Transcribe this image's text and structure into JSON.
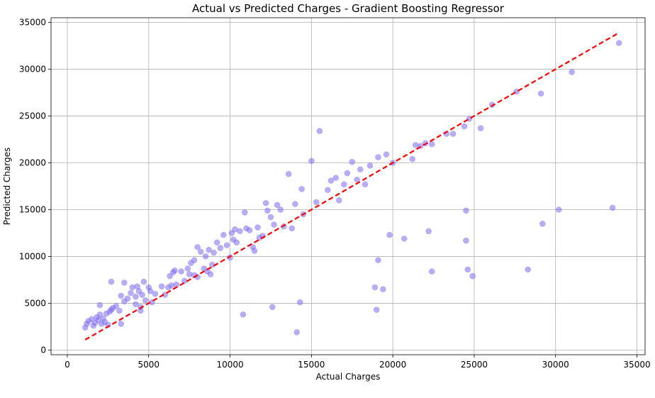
{
  "chart_data": {
    "type": "scatter",
    "title": "Actual vs Predicted Charges - Gradient Boosting Regressor",
    "xlabel": "Actual Charges",
    "ylabel": "Predicted Charges",
    "xlim": [
      -1000,
      35500
    ],
    "ylim": [
      -500,
      35500
    ],
    "xticks": [
      0,
      5000,
      10000,
      15000,
      20000,
      25000,
      30000,
      35000
    ],
    "yticks": [
      0,
      5000,
      10000,
      15000,
      20000,
      25000,
      30000,
      35000
    ],
    "grid": true,
    "colors": {
      "points": "#7b68ee",
      "reference_line": "#ff0000"
    },
    "reference_line": {
      "style": "dashed",
      "x": [
        1100,
        33900
      ],
      "y": [
        1100,
        33900
      ]
    },
    "points": [
      [
        1100,
        2400
      ],
      [
        1200,
        2800
      ],
      [
        1300,
        3100
      ],
      [
        1500,
        3300
      ],
      [
        1600,
        2600
      ],
      [
        1700,
        2900
      ],
      [
        1800,
        3500
      ],
      [
        1900,
        3200
      ],
      [
        2000,
        3800
      ],
      [
        2000,
        4800
      ],
      [
        2100,
        2800
      ],
      [
        2200,
        3400
      ],
      [
        2300,
        3000
      ],
      [
        2400,
        3900
      ],
      [
        2500,
        2700
      ],
      [
        2600,
        4100
      ],
      [
        2700,
        4300
      ],
      [
        2800,
        4500
      ],
      [
        2700,
        7300
      ],
      [
        3000,
        4700
      ],
      [
        3300,
        2800
      ],
      [
        3200,
        4200
      ],
      [
        3300,
        5800
      ],
      [
        3500,
        5200
      ],
      [
        3500,
        7200
      ],
      [
        3700,
        5500
      ],
      [
        3900,
        6100
      ],
      [
        4000,
        6700
      ],
      [
        4200,
        4900
      ],
      [
        4200,
        5700
      ],
      [
        4300,
        6800
      ],
      [
        4400,
        6300
      ],
      [
        4500,
        4600
      ],
      [
        4500,
        4200
      ],
      [
        4600,
        5900
      ],
      [
        4700,
        7300
      ],
      [
        4800,
        5300
      ],
      [
        5000,
        6700
      ],
      [
        5100,
        6300
      ],
      [
        5200,
        5100
      ],
      [
        5400,
        6000
      ],
      [
        5800,
        6800
      ],
      [
        6000,
        5900
      ],
      [
        6200,
        6700
      ],
      [
        6300,
        7900
      ],
      [
        6400,
        6900
      ],
      [
        6500,
        8300
      ],
      [
        6600,
        8500
      ],
      [
        6700,
        7000
      ],
      [
        7000,
        8400
      ],
      [
        7200,
        7400
      ],
      [
        7400,
        8700
      ],
      [
        7500,
        8100
      ],
      [
        7600,
        9300
      ],
      [
        7800,
        8000
      ],
      [
        7800,
        9600
      ],
      [
        8000,
        7800
      ],
      [
        8000,
        11000
      ],
      [
        8200,
        10500
      ],
      [
        8400,
        8700
      ],
      [
        8500,
        10000
      ],
      [
        8600,
        8400
      ],
      [
        8700,
        10700
      ],
      [
        8800,
        8100
      ],
      [
        8900,
        9100
      ],
      [
        9000,
        10400
      ],
      [
        9200,
        11500
      ],
      [
        9400,
        10900
      ],
      [
        9600,
        12300
      ],
      [
        9800,
        11200
      ],
      [
        10000,
        9900
      ],
      [
        10100,
        12500
      ],
      [
        10200,
        11800
      ],
      [
        10300,
        12900
      ],
      [
        10400,
        11500
      ],
      [
        10600,
        12700
      ],
      [
        10800,
        3800
      ],
      [
        10900,
        14700
      ],
      [
        11000,
        13000
      ],
      [
        11200,
        12800
      ],
      [
        11400,
        11000
      ],
      [
        11500,
        10600
      ],
      [
        11700,
        13100
      ],
      [
        11800,
        12000
      ],
      [
        12000,
        12200
      ],
      [
        12200,
        15700
      ],
      [
        12300,
        14900
      ],
      [
        12500,
        14200
      ],
      [
        12600,
        4600
      ],
      [
        12700,
        13400
      ],
      [
        12900,
        15500
      ],
      [
        13100,
        15000
      ],
      [
        13300,
        13200
      ],
      [
        13600,
        18800
      ],
      [
        13800,
        13000
      ],
      [
        14000,
        15600
      ],
      [
        14100,
        1900
      ],
      [
        14300,
        5100
      ],
      [
        14400,
        17200
      ],
      [
        14500,
        14500
      ],
      [
        15000,
        20200
      ],
      [
        15300,
        15800
      ],
      [
        15500,
        23400
      ],
      [
        16000,
        17100
      ],
      [
        16200,
        18100
      ],
      [
        16500,
        18400
      ],
      [
        16700,
        16000
      ],
      [
        17000,
        17700
      ],
      [
        17200,
        18900
      ],
      [
        17500,
        20100
      ],
      [
        17800,
        18200
      ],
      [
        18000,
        19300
      ],
      [
        18300,
        17700
      ],
      [
        18600,
        19700
      ],
      [
        18900,
        6700
      ],
      [
        19000,
        4300
      ],
      [
        19100,
        20600
      ],
      [
        19100,
        9600
      ],
      [
        19400,
        6500
      ],
      [
        19600,
        20900
      ],
      [
        19800,
        12300
      ],
      [
        20000,
        20000
      ],
      [
        20700,
        11900
      ],
      [
        21200,
        20400
      ],
      [
        21400,
        21900
      ],
      [
        21700,
        21800
      ],
      [
        22000,
        22100
      ],
      [
        22200,
        12700
      ],
      [
        22400,
        8400
      ],
      [
        22400,
        22000
      ],
      [
        23300,
        23100
      ],
      [
        23700,
        23100
      ],
      [
        24400,
        23900
      ],
      [
        24500,
        14900
      ],
      [
        24500,
        11700
      ],
      [
        24600,
        8600
      ],
      [
        24700,
        24700
      ],
      [
        24900,
        7900
      ],
      [
        25400,
        23700
      ],
      [
        26100,
        26200
      ],
      [
        27600,
        27600
      ],
      [
        28300,
        8600
      ],
      [
        29100,
        27400
      ],
      [
        29200,
        13500
      ],
      [
        30200,
        15000
      ],
      [
        31000,
        29700
      ],
      [
        33500,
        15200
      ],
      [
        33900,
        32800
      ]
    ]
  }
}
